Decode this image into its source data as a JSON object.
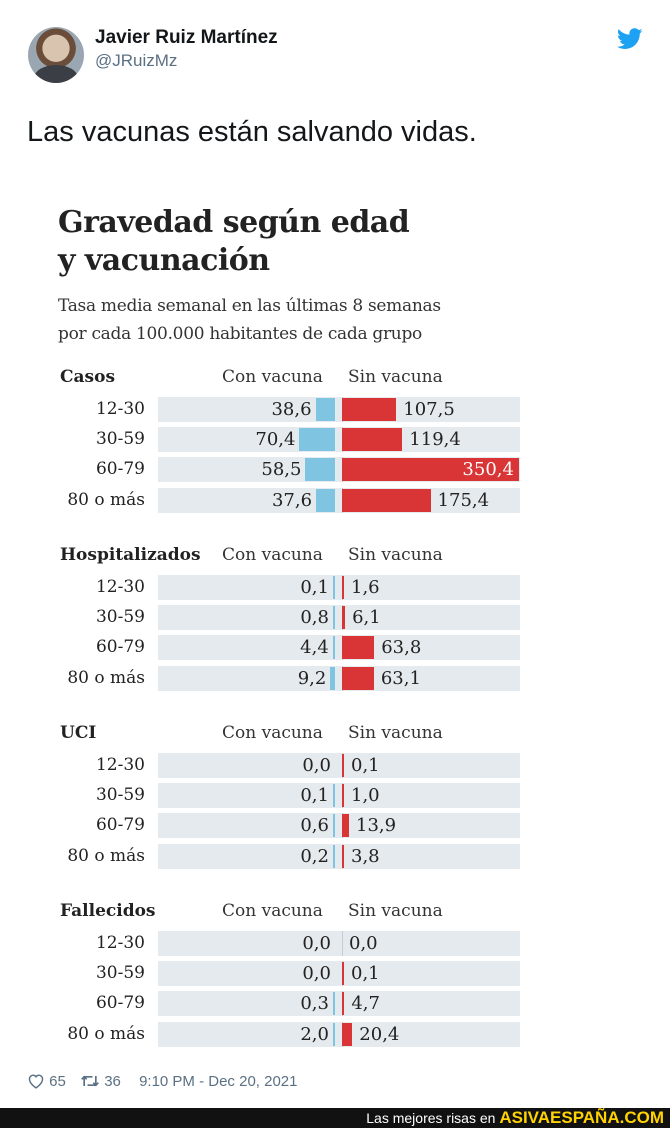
{
  "tweet": {
    "author_name": "Javier Ruiz Martínez",
    "author_handle": "@JRuizMz",
    "text": "Las vacunas están salvando vidas.",
    "likes": "65",
    "retweets": "36",
    "timestamp": "9:10 PM - Dec 20, 2021",
    "icons": {
      "avatar": "profile-photo",
      "logo": "twitter-bird-icon",
      "like": "heart-icon",
      "retweet": "retweet-icon"
    }
  },
  "infographic": {
    "title_line1": "Gravedad según edad",
    "title_line2": "y vacunación",
    "subtitle_line1": "Tasa media semanal en las últimas 8 semanas",
    "subtitle_line2": "por cada 100.000 habitantes de cada grupo",
    "col_con": "Con vacuna",
    "col_sin": "Sin vacuna",
    "colors": {
      "con": "#7fc4e1",
      "sin": "#d93436",
      "band": "#e5eaee"
    },
    "sections": [
      {
        "name": "Casos",
        "rows": [
          {
            "age": "12-30",
            "con": "38,6",
            "sin": "107,5"
          },
          {
            "age": "30-59",
            "con": "70,4",
            "sin": "119,4"
          },
          {
            "age": "60-79",
            "con": "58,5",
            "sin": "350,4"
          },
          {
            "age": "80 o más",
            "con": "37,6",
            "sin": "175,4"
          }
        ]
      },
      {
        "name": "Hospitalizados",
        "rows": [
          {
            "age": "12-30",
            "con": "0,1",
            "sin": "1,6"
          },
          {
            "age": "30-59",
            "con": "0,8",
            "sin": "6,1"
          },
          {
            "age": "60-79",
            "con": "4,4",
            "sin": "63,8"
          },
          {
            "age": "80 o más",
            "con": "9,2",
            "sin": "63,1"
          }
        ]
      },
      {
        "name": "UCI",
        "rows": [
          {
            "age": "12-30",
            "con": "0,0",
            "sin": "0,1"
          },
          {
            "age": "30-59",
            "con": "0,1",
            "sin": "1,0"
          },
          {
            "age": "60-79",
            "con": "0,6",
            "sin": "13,9"
          },
          {
            "age": "80 o más",
            "con": "0,2",
            "sin": "3,8"
          }
        ]
      },
      {
        "name": "Fallecidos",
        "rows": [
          {
            "age": "12-30",
            "con": "0,0",
            "sin": "0,0"
          },
          {
            "age": "30-59",
            "con": "0,0",
            "sin": "0,1"
          },
          {
            "age": "60-79",
            "con": "0,3",
            "sin": "4,7"
          },
          {
            "age": "80 o más",
            "con": "2,0",
            "sin": "20,4"
          }
        ]
      }
    ]
  },
  "watermark": {
    "prefix": "Las mejores risas en",
    "site": "ASIVAESPAÑA.COM"
  }
}
